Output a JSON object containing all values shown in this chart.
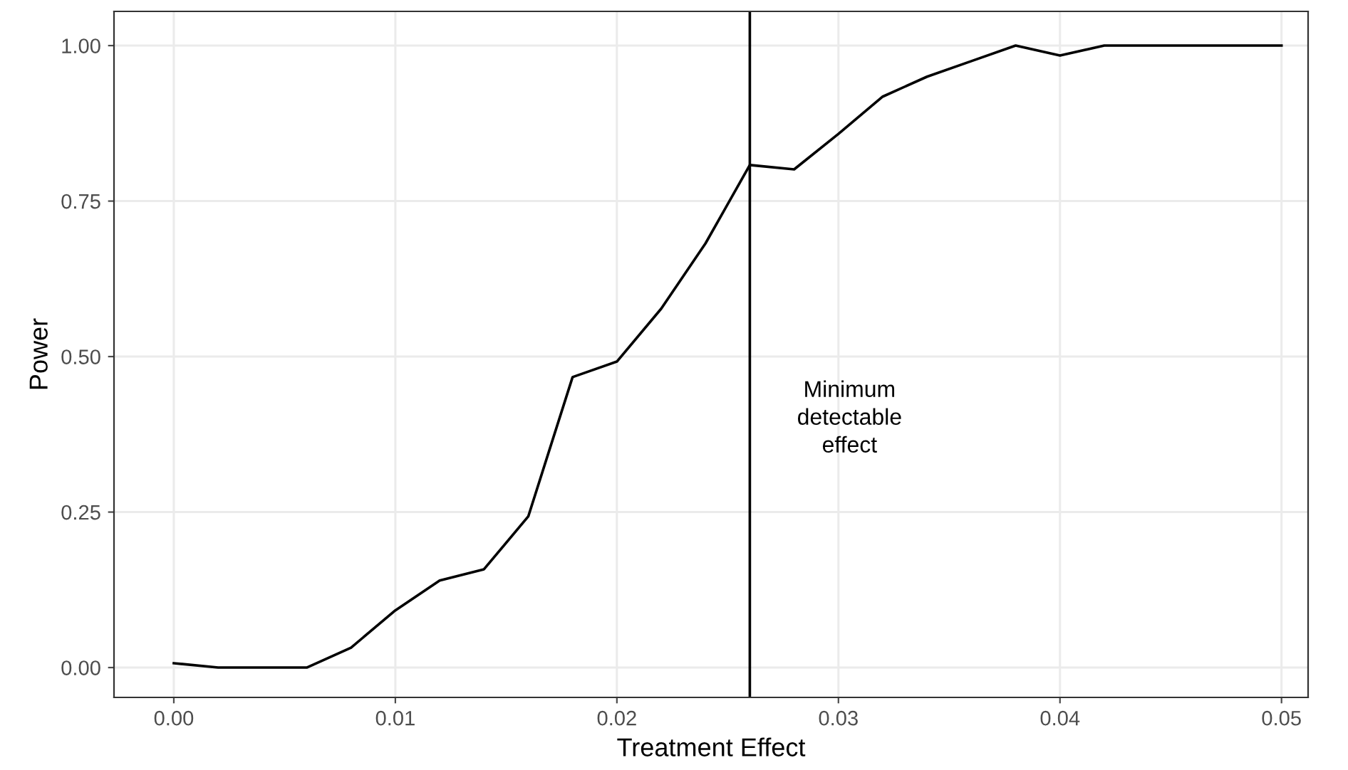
{
  "chart_data": {
    "type": "line",
    "xlabel": "Treatment Effect",
    "ylabel": "Power",
    "x": [
      0.0,
      0.002,
      0.004,
      0.006,
      0.008,
      0.01,
      0.012,
      0.014,
      0.016,
      0.018,
      0.02,
      0.022,
      0.024,
      0.026,
      0.028,
      0.03,
      0.032,
      0.034,
      0.036,
      0.038,
      0.04,
      0.042,
      0.044,
      0.046,
      0.048,
      0.05
    ],
    "series": [
      {
        "color": "#000000",
        "values": [
          0.007,
          0.0,
          0.0,
          0.0,
          0.032,
          0.092,
          0.14,
          0.158,
          0.243,
          0.467,
          0.492,
          0.577,
          0.682,
          0.808,
          0.801,
          0.858,
          0.918,
          0.95,
          0.975,
          1.0,
          0.984,
          1.0,
          1.0,
          1.0,
          1.0,
          1.0
        ]
      }
    ],
    "xlim": [
      -0.0027,
      0.0512
    ],
    "ylim": [
      -0.048,
      1.055
    ],
    "xticks": [
      {
        "value": 0.0,
        "label": "0.00"
      },
      {
        "value": 0.01,
        "label": "0.01"
      },
      {
        "value": 0.02,
        "label": "0.02"
      },
      {
        "value": 0.03,
        "label": "0.03"
      },
      {
        "value": 0.04,
        "label": "0.04"
      },
      {
        "value": 0.05,
        "label": "0.05"
      }
    ],
    "yticks": [
      {
        "value": 0.0,
        "label": "0.00"
      },
      {
        "value": 0.25,
        "label": "0.25"
      },
      {
        "value": 0.5,
        "label": "0.50"
      },
      {
        "value": 0.75,
        "label": "0.75"
      },
      {
        "value": 1.0,
        "label": "1.00"
      }
    ],
    "ref_lines": [
      {
        "axis": "x",
        "value": 0.026,
        "label": "Minimum\ndetectable\neffect",
        "color": "#000000",
        "line_style": "solid"
      }
    ],
    "grid": true,
    "legend": false,
    "marker": "none",
    "line_style": "solid"
  }
}
